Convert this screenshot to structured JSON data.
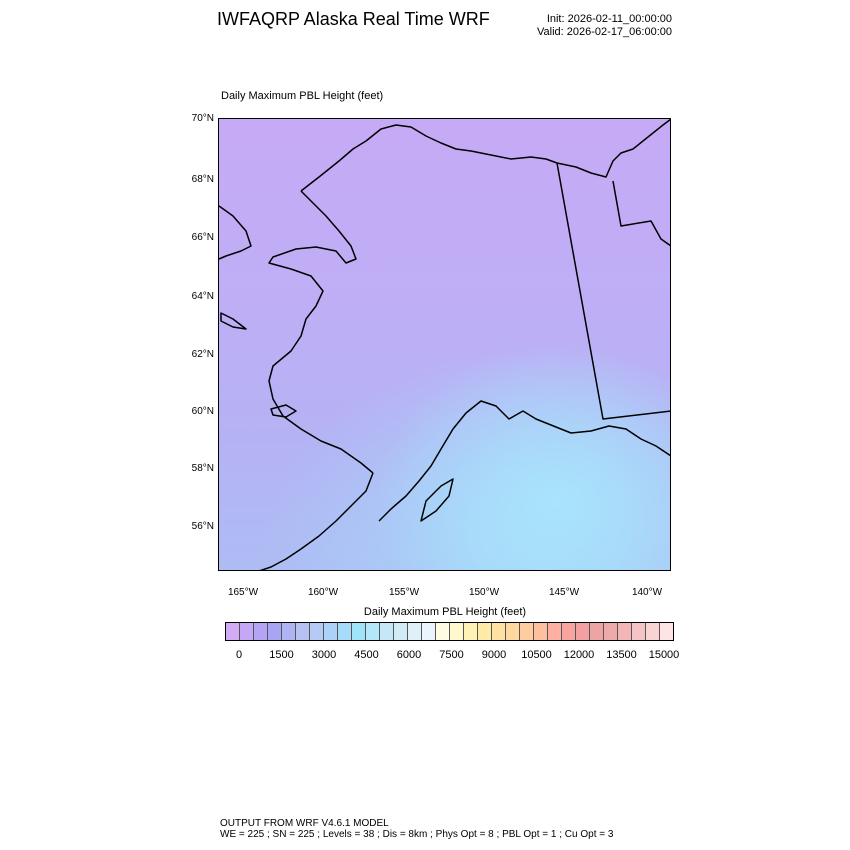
{
  "header": {
    "title": "IWFAQRP Alaska Real Time WRF",
    "init": "Init: 2026-02-11_00:00:00",
    "valid": "Valid: 2026-02-17_06:00:00"
  },
  "plot": {
    "subtitle": "Daily Maximum PBL Height   (feet)",
    "lat_labels": [
      "70°N",
      "68°N",
      "66°N",
      "64°N",
      "62°N",
      "60°N",
      "58°N",
      "56°N"
    ],
    "lon_labels": [
      "165°W",
      "160°W",
      "155°W",
      "150°W",
      "145°W",
      "140°W"
    ]
  },
  "colorbar": {
    "title": "Daily Maximum PBL Height  (feet)",
    "labels": [
      "0",
      "1500",
      "3000",
      "4500",
      "6000",
      "7500",
      "9000",
      "10500",
      "12000",
      "13500",
      "15000"
    ],
    "colors": [
      "#d2aaf6",
      "#c4a8f6",
      "#b4a4f6",
      "#a8a6f4",
      "#b0b4f4",
      "#b8c2f2",
      "#b6caf6",
      "#acd2f8",
      "#a6dcf9",
      "#a0e4fa",
      "#b2e8f9",
      "#c4e8f8",
      "#d2ecf7",
      "#e0f0f9",
      "#eaf4fb",
      "#fffce2",
      "#fff8cc",
      "#fff2b4",
      "#ffeaa8",
      "#ffe2a2",
      "#ffd8a0",
      "#ffcca0",
      "#ffc0a0",
      "#ffb0a0",
      "#faa4a0",
      "#f4a0a2",
      "#eea4a4",
      "#eeaaaa",
      "#f2b6b6",
      "#f6c4c4",
      "#fad4d4",
      "#ffe4e4"
    ]
  },
  "footer": {
    "line1": "OUTPUT FROM WRF V4.6.1 MODEL",
    "line2": "WE = 225 ; SN = 225 ; Levels = 38 ; Dis = 8km ; Phys Opt = 8 ; PBL Opt = 1 ; Cu Opt = 3"
  }
}
